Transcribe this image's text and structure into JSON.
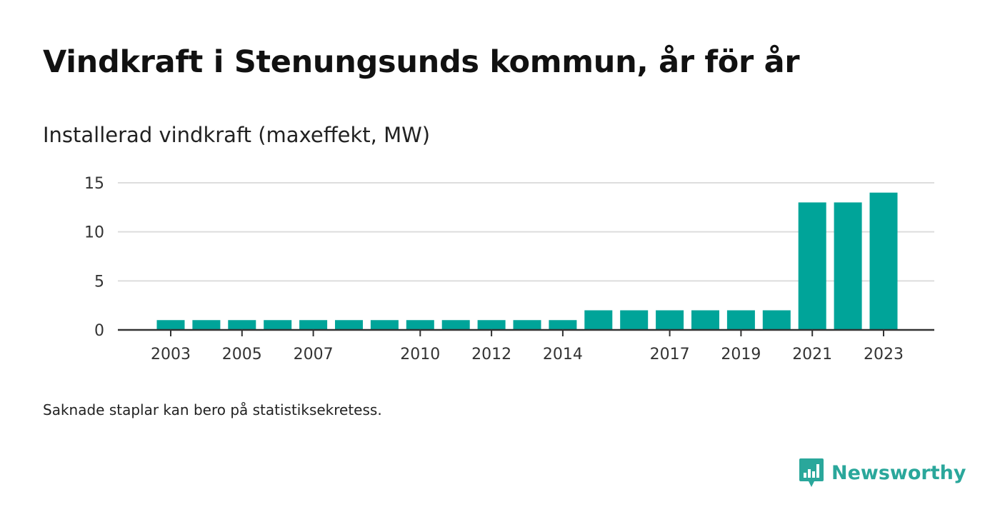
{
  "title": "Vindkraft i Stenungsunds kommun, år för år",
  "subtitle": "Installerad vindkraft (maxeffekt, MW)",
  "footnote": "Saknade staplar kan bero på statistiksekretess.",
  "brand": {
    "name": "Newsworthy",
    "logo_icon": "newsworthy-chart-bubble-icon",
    "color": "#2aa79b"
  },
  "chart_data": {
    "type": "bar",
    "categories": [
      "2003",
      "2004",
      "2005",
      "2006",
      "2007",
      "2008",
      "2009",
      "2010",
      "2011",
      "2012",
      "2013",
      "2014",
      "2015",
      "2016",
      "2017",
      "2018",
      "2019",
      "2020",
      "2021",
      "2022",
      "2023"
    ],
    "values": [
      1,
      1,
      1,
      1,
      1,
      1,
      1,
      1,
      1,
      1,
      1,
      1,
      2,
      2,
      2,
      2,
      2,
      2,
      13,
      13,
      14
    ],
    "x_tick_labels": [
      "2003",
      "2005",
      "2007",
      "2010",
      "2012",
      "2014",
      "2017",
      "2019",
      "2021",
      "2023"
    ],
    "y_ticks": [
      0,
      5,
      10,
      15
    ],
    "ylim": [
      0,
      15
    ],
    "xlabel": "",
    "ylabel": "",
    "grid": true,
    "bar_color": "#00a499",
    "grid_color": "#dddddd",
    "axis_color": "#333333"
  }
}
